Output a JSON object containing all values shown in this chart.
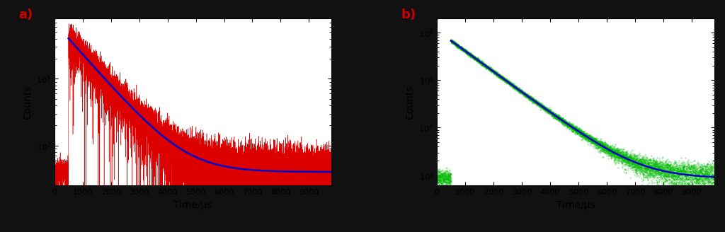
{
  "panel_a": {
    "label": "a)",
    "label_color": "#cc0000",
    "xlabel": "Time/μs",
    "ylabel": "Counts",
    "xlim": [
      0,
      9800
    ],
    "ylim_log": [
      25,
      8000
    ],
    "data_color": "#dd0000",
    "fit_color": "#0000cc",
    "peak_x": 500,
    "peak_y": 4500,
    "decay_amplitude": 4000,
    "decay_tau": 900,
    "background": 40,
    "noise_rel": 0.35,
    "xticks": [
      0,
      1000,
      2000,
      3000,
      4000,
      5000,
      6000,
      7000,
      8000,
      9000
    ]
  },
  "panel_b": {
    "label": "b)",
    "label_color": "#cc0000",
    "xlabel": "Time/μs",
    "ylabel": "Counts",
    "xlim": [
      0,
      9800
    ],
    "ylim_log": [
      600,
      2000000
    ],
    "data_color": "#00bb00",
    "fit_color": "#0000cc",
    "peak_x": 500,
    "peak_y": 700000,
    "decay_amplitude": 680000,
    "decay_tau": 1000,
    "background": 850,
    "noise_rel": 0.04,
    "xticks": [
      0,
      1000,
      2000,
      3000,
      4000,
      5000,
      6000,
      7000,
      8000,
      9000
    ]
  },
  "figure_bg": "#111111",
  "plot_bg": "#ffffff",
  "dpi": 100,
  "figsize": [
    10.24,
    3.28
  ]
}
